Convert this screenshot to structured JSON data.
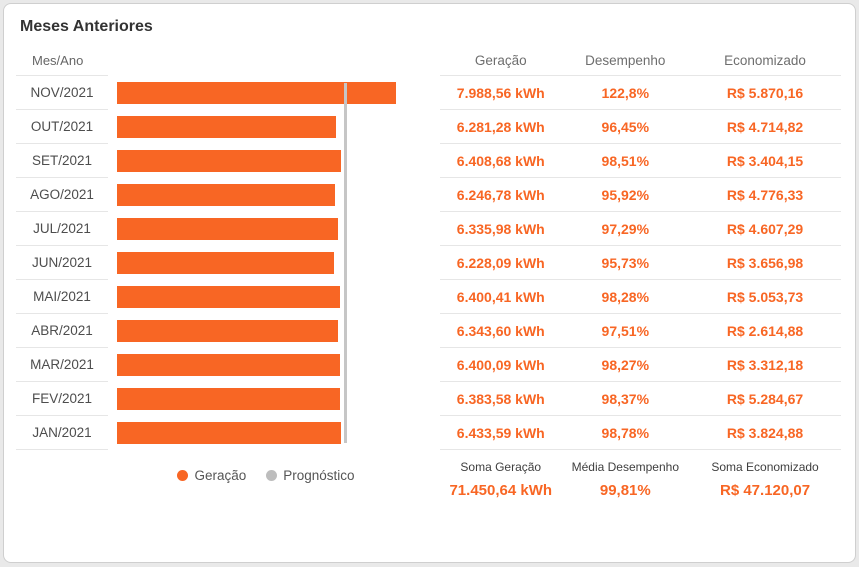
{
  "title": "Meses Anteriores",
  "colors": {
    "accent": "#f86624",
    "prognostic_line": "#c6c6c6",
    "row_border": "#e6e6e6"
  },
  "chart": {
    "max_kwh": 8800,
    "prognostic_kwh": 6509,
    "legend": [
      {
        "label": "Geração",
        "color": "#f86624"
      },
      {
        "label": "Prognóstico",
        "color": "#bdbdbd"
      }
    ]
  },
  "table": {
    "month_header": "Mes/Ano",
    "columns": [
      "Geração",
      "Desempenho",
      "Economizado"
    ],
    "rows": [
      {
        "month": "NOV/2021",
        "generation_kwh": 7988.56,
        "generation": "7.988,56 kWh",
        "performance": "122,8%",
        "saved": "R$ 5.870,16"
      },
      {
        "month": "OUT/2021",
        "generation_kwh": 6281.28,
        "generation": "6.281,28 kWh",
        "performance": "96,45%",
        "saved": "R$ 4.714,82"
      },
      {
        "month": "SET/2021",
        "generation_kwh": 6408.68,
        "generation": "6.408,68 kWh",
        "performance": "98,51%",
        "saved": "R$ 3.404,15"
      },
      {
        "month": "AGO/2021",
        "generation_kwh": 6246.78,
        "generation": "6.246,78 kWh",
        "performance": "95,92%",
        "saved": "R$ 4.776,33"
      },
      {
        "month": "JUL/2021",
        "generation_kwh": 6335.98,
        "generation": "6.335,98 kWh",
        "performance": "97,29%",
        "saved": "R$ 4.607,29"
      },
      {
        "month": "JUN/2021",
        "generation_kwh": 6228.09,
        "generation": "6.228,09 kWh",
        "performance": "95,73%",
        "saved": "R$ 3.656,98"
      },
      {
        "month": "MAI/2021",
        "generation_kwh": 6400.41,
        "generation": "6.400,41 kWh",
        "performance": "98,28%",
        "saved": "R$ 5.053,73"
      },
      {
        "month": "ABR/2021",
        "generation_kwh": 6343.6,
        "generation": "6.343,60 kWh",
        "performance": "97,51%",
        "saved": "R$ 2.614,88"
      },
      {
        "month": "MAR/2021",
        "generation_kwh": 6400.09,
        "generation": "6.400,09 kWh",
        "performance": "98,27%",
        "saved": "R$ 3.312,18"
      },
      {
        "month": "FEV/2021",
        "generation_kwh": 6383.58,
        "generation": "6.383,58 kWh",
        "performance": "98,37%",
        "saved": "R$ 5.284,67"
      },
      {
        "month": "JAN/2021",
        "generation_kwh": 6433.59,
        "generation": "6.433,59 kWh",
        "performance": "98,78%",
        "saved": "R$ 3.824,88"
      }
    ],
    "footer": {
      "generation_label": "Soma Geração",
      "generation_value": "71.450,64 kWh",
      "performance_label": "Média Desempenho",
      "performance_value": "99,81%",
      "saved_label": "Soma Economizado",
      "saved_value": "R$ 47.120,07"
    }
  },
  "chart_data": {
    "type": "bar",
    "orientation": "horizontal",
    "title": "Meses Anteriores",
    "categories": [
      "NOV/2021",
      "OUT/2021",
      "SET/2021",
      "AGO/2021",
      "JUL/2021",
      "JUN/2021",
      "MAI/2021",
      "ABR/2021",
      "MAR/2021",
      "FEV/2021",
      "JAN/2021"
    ],
    "series": [
      {
        "name": "Geração (kWh)",
        "values": [
          7988.56,
          6281.28,
          6408.68,
          6246.78,
          6335.98,
          6228.09,
          6400.41,
          6343.6,
          6400.09,
          6383.58,
          6433.59
        ]
      },
      {
        "name": "Desempenho (%)",
        "values": [
          122.8,
          96.45,
          98.51,
          95.92,
          97.29,
          95.73,
          98.28,
          97.51,
          98.27,
          98.37,
          98.78
        ]
      },
      {
        "name": "Economizado (R$)",
        "values": [
          5870.16,
          4714.82,
          3404.15,
          4776.33,
          4607.29,
          3656.98,
          5053.73,
          2614.88,
          3312.18,
          5284.67,
          3824.88
        ]
      }
    ],
    "reference_line": {
      "name": "Prognóstico",
      "approx_kwh": 6509
    },
    "legend": [
      "Geração",
      "Prognóstico"
    ],
    "legend_position": "bottom",
    "grid": false,
    "xlim": [
      0,
      8800
    ],
    "totals": {
      "soma_geracao_kwh": 71450.64,
      "media_desempenho_pct": 99.81,
      "soma_economizado_brl": 47120.07
    }
  }
}
